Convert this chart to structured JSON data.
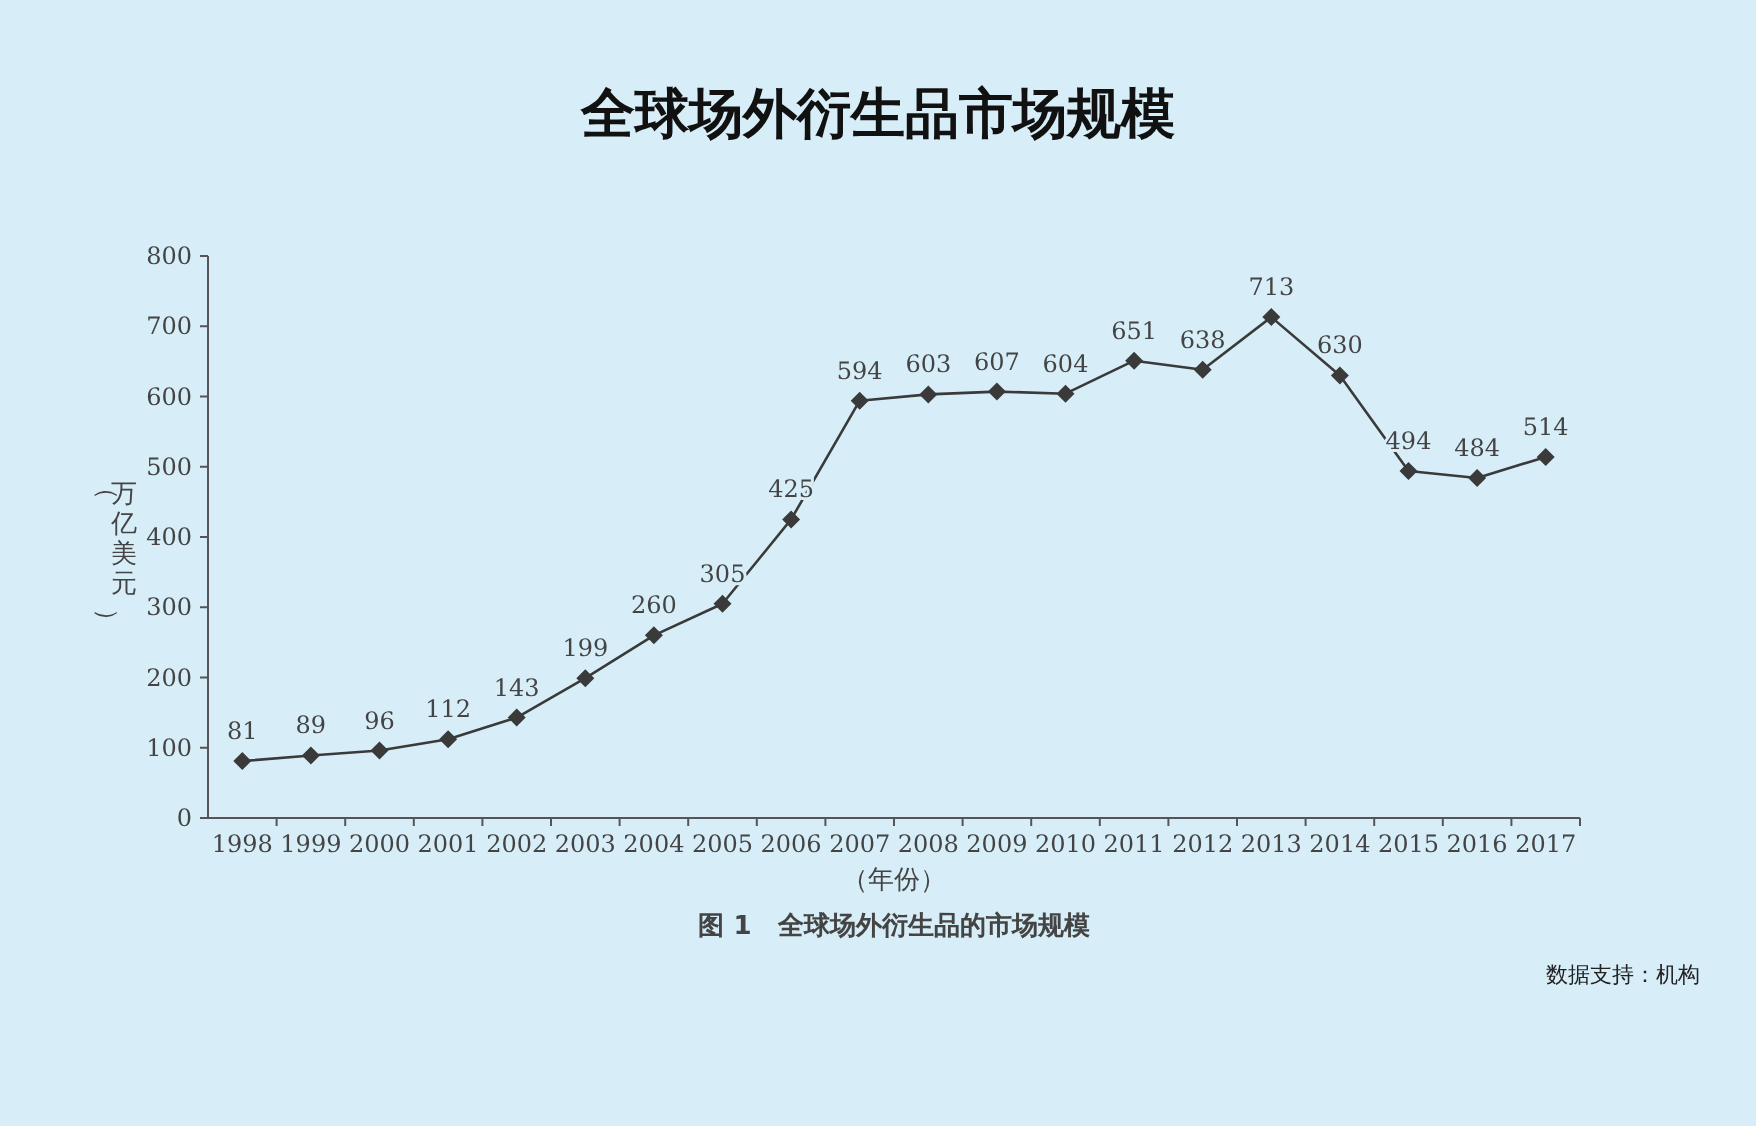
{
  "chart_data": {
    "type": "line",
    "title": "全球场外衍生品市场规模",
    "xlabel": "（年份）",
    "ylabel": "（万亿美元）",
    "annotations": [
      "图 1　全球场外衍生品的市场规模",
      "数据支持：机构"
    ],
    "categories": [
      "1998",
      "1999",
      "2000",
      "2001",
      "2002",
      "2003",
      "2004",
      "2005",
      "2006",
      "2007",
      "2008",
      "2009",
      "2010",
      "2011",
      "2012",
      "2013",
      "2014",
      "2015",
      "2016",
      "2017"
    ],
    "values": [
      81,
      89,
      96,
      112,
      143,
      199,
      260,
      305,
      425,
      594,
      603,
      607,
      604,
      651,
      638,
      713,
      630,
      494,
      484,
      514
    ],
    "color": "#3a3a3a",
    "ylim": [
      0,
      800
    ],
    "yticks": [
      0,
      100,
      200,
      300,
      400,
      500,
      600,
      700,
      800
    ],
    "marker": "diamond",
    "data_labels": true,
    "grid": false
  }
}
